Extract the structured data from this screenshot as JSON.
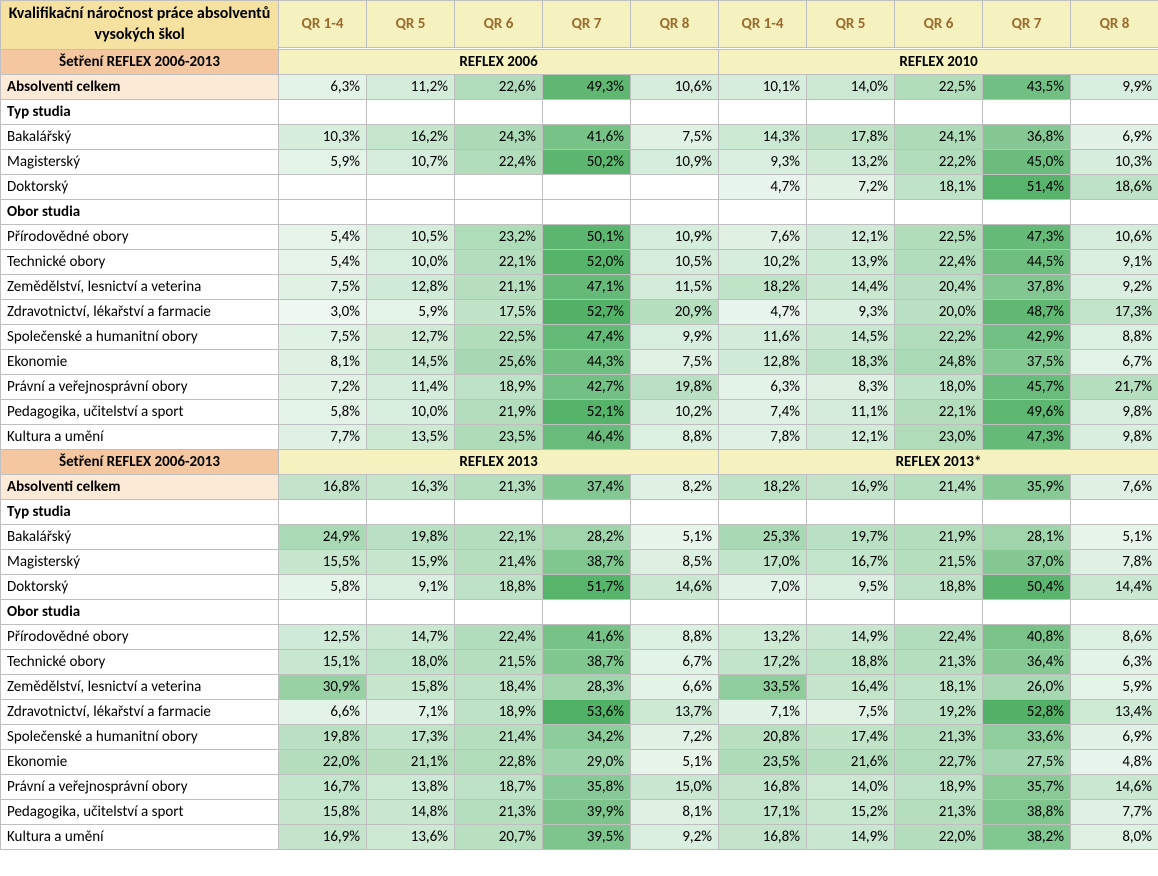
{
  "title": "Kvalifikační náročnost práce absolventů vysokých škol",
  "survey_label": "Šetření REFLEX 2006-2013",
  "col_headers": [
    "QR 1-4",
    "QR 5",
    "QR 6",
    "QR 7",
    "QR 8"
  ],
  "periods": [
    "REFLEX 2006",
    "REFLEX 2010",
    "REFLEX 2013",
    "REFLEX 2013*"
  ],
  "row_labels": {
    "total": "Absolventi celkem",
    "type": "Typ studia",
    "bak": "Bakalářský",
    "mag": "Magisterský",
    "dok": "Doktorský",
    "field": "Obor studia",
    "prir": "Přírodovědné obory",
    "tech": "Technické obory",
    "zem": "Zemědělství, lesnictví a veterina",
    "zdrav": "Zdravotnictví, lékařství a farmacie",
    "spol": "Společenské a humanitní obory",
    "ekon": "Ekonomie",
    "prav": "Právní a veřejnosprávní obory",
    "ped": "Pedagogika, učitelství a sport",
    "kult": "Kultura a umění"
  },
  "colors": {
    "corner_bg": "#f5e2a0",
    "col_header_bg": "#f5f2c0",
    "col_header_fg": "#9c6a2d",
    "survey_bg": "#f4c7a0",
    "total_bg": "#fce9d6",
    "border": "#bfbfbf",
    "heatmap_min": "#f7fcf9",
    "heatmap_max": "#4daf62",
    "heatmap_domain": [
      0,
      55
    ]
  },
  "blocks": [
    {
      "periods": [
        "REFLEX 2006",
        "REFLEX 2010"
      ],
      "rows": [
        {
          "key": "total",
          "v": [
            [
              6.3,
              11.2,
              22.6,
              49.3,
              10.6
            ],
            [
              10.1,
              14.0,
              22.5,
              43.5,
              9.9
            ]
          ]
        },
        {
          "key": "type",
          "section": true
        },
        {
          "key": "bak",
          "v": [
            [
              10.3,
              16.2,
              24.3,
              41.6,
              7.5
            ],
            [
              14.3,
              17.8,
              24.1,
              36.8,
              6.9
            ]
          ]
        },
        {
          "key": "mag",
          "v": [
            [
              5.9,
              10.7,
              22.4,
              50.2,
              10.9
            ],
            [
              9.3,
              13.2,
              22.2,
              45.0,
              10.3
            ]
          ]
        },
        {
          "key": "dok",
          "v": [
            [
              null,
              null,
              null,
              null,
              null
            ],
            [
              4.7,
              7.2,
              18.1,
              51.4,
              18.6
            ]
          ]
        },
        {
          "key": "field",
          "section": true
        },
        {
          "key": "prir",
          "v": [
            [
              5.4,
              10.5,
              23.2,
              50.1,
              10.9
            ],
            [
              7.6,
              12.1,
              22.5,
              47.3,
              10.6
            ]
          ]
        },
        {
          "key": "tech",
          "v": [
            [
              5.4,
              10.0,
              22.1,
              52.0,
              10.5
            ],
            [
              10.2,
              13.9,
              22.4,
              44.5,
              9.1
            ]
          ]
        },
        {
          "key": "zem",
          "v": [
            [
              7.5,
              12.8,
              21.1,
              47.1,
              11.5
            ],
            [
              18.2,
              14.4,
              20.4,
              37.8,
              9.2
            ]
          ]
        },
        {
          "key": "zdrav",
          "v": [
            [
              3.0,
              5.9,
              17.5,
              52.7,
              20.9
            ],
            [
              4.7,
              9.3,
              20.0,
              48.7,
              17.3
            ]
          ]
        },
        {
          "key": "spol",
          "v": [
            [
              7.5,
              12.7,
              22.5,
              47.4,
              9.9
            ],
            [
              11.6,
              14.5,
              22.2,
              42.9,
              8.8
            ]
          ]
        },
        {
          "key": "ekon",
          "v": [
            [
              8.1,
              14.5,
              25.6,
              44.3,
              7.5
            ],
            [
              12.8,
              18.3,
              24.8,
              37.5,
              6.7
            ]
          ]
        },
        {
          "key": "prav",
          "v": [
            [
              7.2,
              11.4,
              18.9,
              42.7,
              19.8
            ],
            [
              6.3,
              8.3,
              18.0,
              45.7,
              21.7
            ]
          ]
        },
        {
          "key": "ped",
          "v": [
            [
              5.8,
              10.0,
              21.9,
              52.1,
              10.2
            ],
            [
              7.4,
              11.1,
              22.1,
              49.6,
              9.8
            ]
          ]
        },
        {
          "key": "kult",
          "v": [
            [
              7.7,
              13.5,
              23.5,
              46.4,
              8.8
            ],
            [
              7.8,
              12.1,
              23.0,
              47.3,
              9.8
            ]
          ]
        }
      ]
    },
    {
      "periods": [
        "REFLEX 2013",
        "REFLEX 2013*"
      ],
      "rows": [
        {
          "key": "total",
          "v": [
            [
              16.8,
              16.3,
              21.3,
              37.4,
              8.2
            ],
            [
              18.2,
              16.9,
              21.4,
              35.9,
              7.6
            ]
          ]
        },
        {
          "key": "type",
          "section": true
        },
        {
          "key": "bak",
          "v": [
            [
              24.9,
              19.8,
              22.1,
              28.2,
              5.1
            ],
            [
              25.3,
              19.7,
              21.9,
              28.1,
              5.1
            ]
          ]
        },
        {
          "key": "mag",
          "v": [
            [
              15.5,
              15.9,
              21.4,
              38.7,
              8.5
            ],
            [
              17.0,
              16.7,
              21.5,
              37.0,
              7.8
            ]
          ]
        },
        {
          "key": "dok",
          "v": [
            [
              5.8,
              9.1,
              18.8,
              51.7,
              14.6
            ],
            [
              7.0,
              9.5,
              18.8,
              50.4,
              14.4
            ]
          ]
        },
        {
          "key": "field",
          "section": true
        },
        {
          "key": "prir",
          "v": [
            [
              12.5,
              14.7,
              22.4,
              41.6,
              8.8
            ],
            [
              13.2,
              14.9,
              22.4,
              40.8,
              8.6
            ]
          ]
        },
        {
          "key": "tech",
          "v": [
            [
              15.1,
              18.0,
              21.5,
              38.7,
              6.7
            ],
            [
              17.2,
              18.8,
              21.3,
              36.4,
              6.3
            ]
          ]
        },
        {
          "key": "zem",
          "v": [
            [
              30.9,
              15.8,
              18.4,
              28.3,
              6.6
            ],
            [
              33.5,
              16.4,
              18.1,
              26.0,
              5.9
            ]
          ]
        },
        {
          "key": "zdrav",
          "v": [
            [
              6.6,
              7.1,
              18.9,
              53.6,
              13.7
            ],
            [
              7.1,
              7.5,
              19.2,
              52.8,
              13.4
            ]
          ]
        },
        {
          "key": "spol",
          "v": [
            [
              19.8,
              17.3,
              21.4,
              34.2,
              7.2
            ],
            [
              20.8,
              17.4,
              21.3,
              33.6,
              6.9
            ]
          ]
        },
        {
          "key": "ekon",
          "v": [
            [
              22.0,
              21.1,
              22.8,
              29.0,
              5.1
            ],
            [
              23.5,
              21.6,
              22.7,
              27.5,
              4.8
            ]
          ]
        },
        {
          "key": "prav",
          "v": [
            [
              16.7,
              13.8,
              18.7,
              35.8,
              15.0
            ],
            [
              16.8,
              14.0,
              18.9,
              35.7,
              14.6
            ]
          ]
        },
        {
          "key": "ped",
          "v": [
            [
              15.8,
              14.8,
              21.3,
              39.9,
              8.1
            ],
            [
              17.1,
              15.2,
              21.3,
              38.8,
              7.7
            ]
          ]
        },
        {
          "key": "kult",
          "v": [
            [
              16.9,
              13.6,
              20.7,
              39.5,
              9.2
            ],
            [
              16.8,
              14.9,
              22.0,
              38.2,
              8.0
            ]
          ]
        }
      ]
    }
  ]
}
